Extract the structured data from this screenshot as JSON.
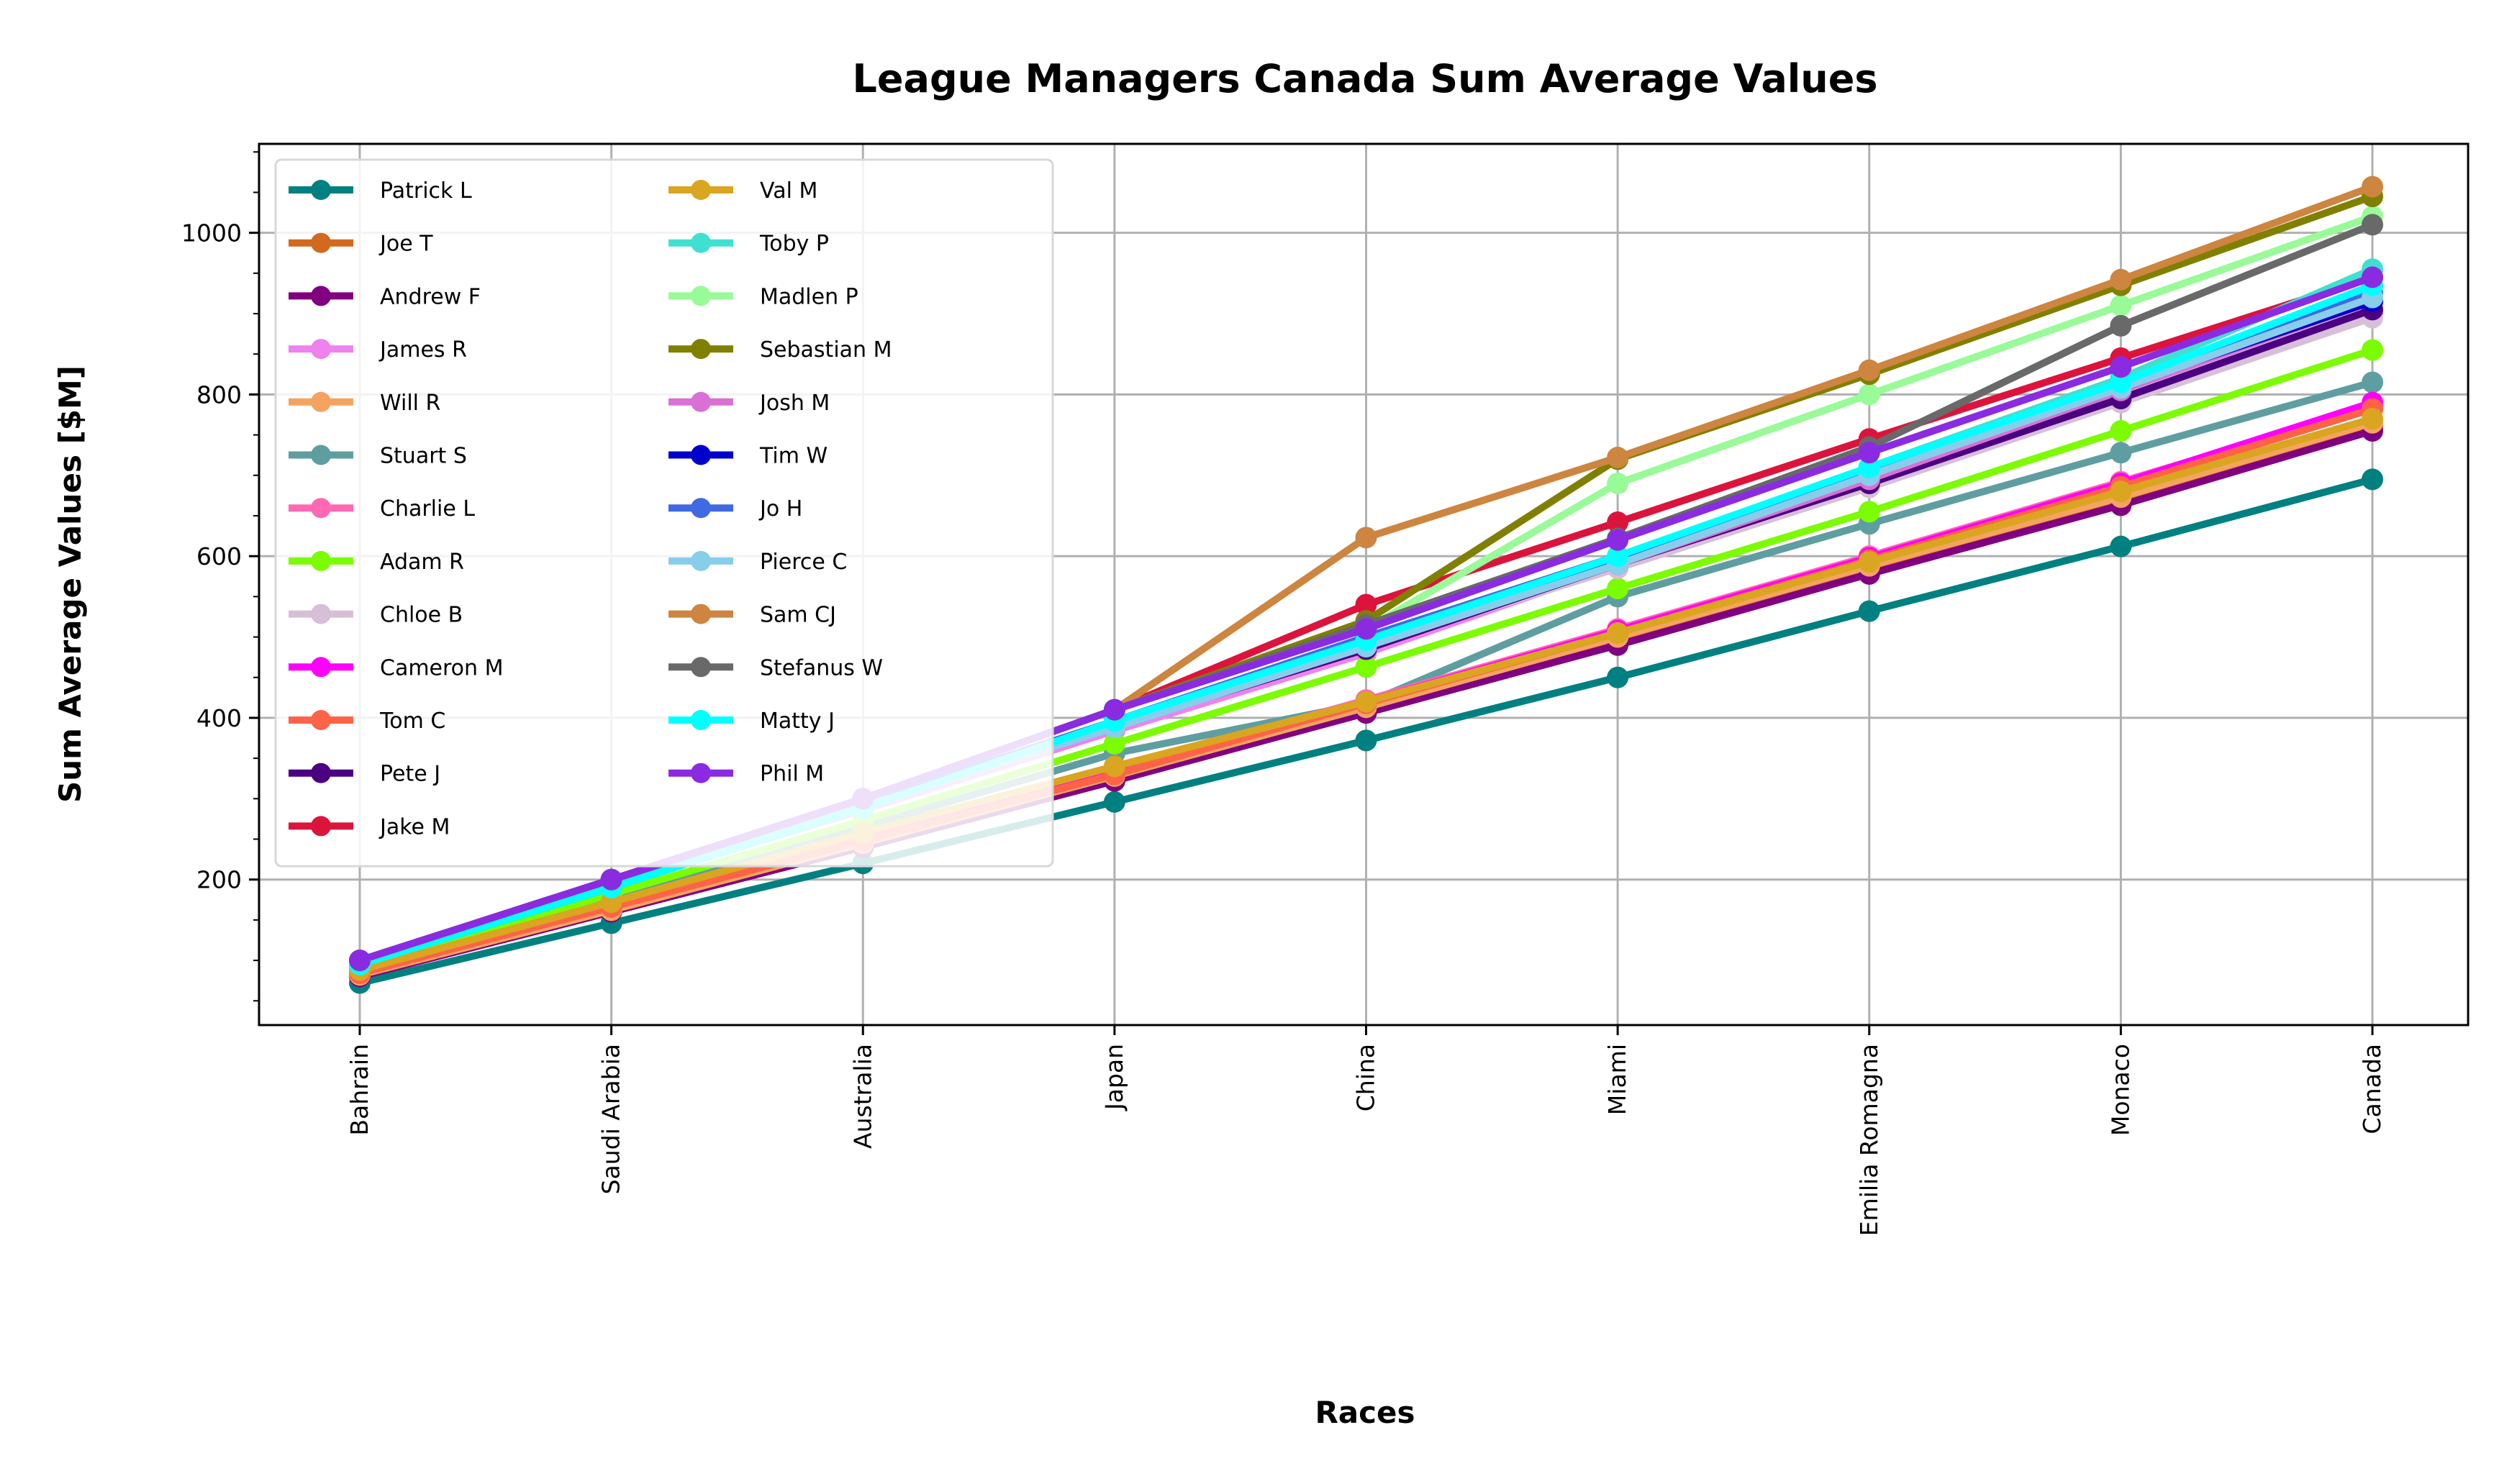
{
  "chart_data": {
    "type": "line",
    "title": "League Managers Canada Sum Average Values",
    "xlabel": "Races",
    "ylabel": "Sum Average Values [$M]",
    "ylim": [
      20,
      1110
    ],
    "yticks": [
      200,
      400,
      600,
      800,
      1000
    ],
    "grid": true,
    "legend_placement": "top-left",
    "categories": [
      "Bahrain",
      "Saudi Arabia",
      "Australia",
      "Japan",
      "China",
      "Miami",
      "Emilia Romagna",
      "Monaco",
      "Canada"
    ],
    "series": [
      {
        "name": "Patrick L",
        "color": "#008080",
        "values": [
          72,
          146,
          220,
          296,
          372,
          450,
          532,
          612,
          695
        ]
      },
      {
        "name": "Joe T",
        "color": "#D2691E",
        "values": [
          80,
          162,
          243,
          326,
          410,
          497,
          585,
          668,
          760
        ]
      },
      {
        "name": "Andrew F",
        "color": "#800080",
        "values": [
          80,
          160,
          240,
          322,
          406,
          490,
          578,
          663,
          755
        ]
      },
      {
        "name": "James R",
        "color": "#EE82EE",
        "values": [
          95,
          192,
          286,
          384,
          480,
          588,
          688,
          795,
          900
        ]
      },
      {
        "name": "Will R",
        "color": "#F4A460",
        "values": [
          82,
          162,
          245,
          328,
          413,
          500,
          588,
          673,
          765
        ]
      },
      {
        "name": "Stuart S",
        "color": "#5F9EA0",
        "values": [
          88,
          178,
          265,
          356,
          418,
          550,
          640,
          728,
          815
        ]
      },
      {
        "name": "Charlie L",
        "color": "#FF69B4",
        "values": [
          85,
          170,
          252,
          335,
          422,
          510,
          600,
          692,
          785
        ]
      },
      {
        "name": "Adam R",
        "color": "#7CFC00",
        "values": [
          90,
          182,
          273,
          368,
          463,
          560,
          655,
          755,
          855
        ]
      },
      {
        "name": "Chloe B",
        "color": "#D8BFD8",
        "values": [
          98,
          196,
          295,
          392,
          488,
          585,
          685,
          790,
          895
        ]
      },
      {
        "name": "Cameron M",
        "color": "#FF00FF",
        "values": [
          86,
          168,
          250,
          333,
          420,
          508,
          598,
          690,
          790
        ]
      },
      {
        "name": "Tom C",
        "color": "#FF6347",
        "values": [
          84,
          166,
          248,
          330,
          418,
          505,
          595,
          686,
          782
        ]
      },
      {
        "name": "Pete J",
        "color": "#4B0082",
        "values": [
          95,
          190,
          290,
          390,
          485,
          590,
          690,
          795,
          905
        ]
      },
      {
        "name": "Jake M",
        "color": "#DC143C",
        "values": [
          98,
          198,
          300,
          410,
          540,
          642,
          745,
          845,
          945
        ]
      },
      {
        "name": "Val M",
        "color": "#DAA520",
        "values": [
          88,
          172,
          258,
          340,
          420,
          505,
          593,
          680,
          770
        ]
      },
      {
        "name": "Toby P",
        "color": "#40E0D0",
        "values": [
          96,
          192,
          290,
          390,
          500,
          600,
          710,
          820,
          955
        ]
      },
      {
        "name": "Madlen P",
        "color": "#98FB98",
        "values": [
          100,
          200,
          300,
          410,
          510,
          690,
          800,
          910,
          1020
        ]
      },
      {
        "name": "Sebastian M",
        "color": "#808000",
        "values": [
          100,
          200,
          300,
          410,
          520,
          720,
          825,
          935,
          1045
        ]
      },
      {
        "name": "Josh M",
        "color": "#DA70D6",
        "values": [
          96,
          194,
          292,
          390,
          490,
          590,
          695,
          805,
          915
        ]
      },
      {
        "name": "Tim W",
        "color": "#0000CD",
        "values": [
          96,
          194,
          293,
          394,
          498,
          598,
          705,
          810,
          915
        ]
      },
      {
        "name": "Jo H",
        "color": "#4169E1",
        "values": [
          96,
          194,
          295,
          396,
          500,
          600,
          708,
          815,
          925
        ]
      },
      {
        "name": "Pierce C",
        "color": "#87CEEB",
        "values": [
          95,
          190,
          290,
          388,
          488,
          590,
          700,
          808,
          920
        ]
      },
      {
        "name": "Sam CJ",
        "color": "#CD853F",
        "values": [
          100,
          200,
          300,
          410,
          623,
          722,
          830,
          942,
          1057
        ]
      },
      {
        "name": "Stefanus W",
        "color": "#696969",
        "values": [
          100,
          200,
          300,
          410,
          515,
          622,
          735,
          885,
          1010
        ]
      },
      {
        "name": "Matty J",
        "color": "#00FFFF",
        "values": [
          95,
          190,
          288,
          396,
          496,
          600,
          710,
          815,
          935
        ]
      },
      {
        "name": "Phil M",
        "color": "#8A2BE2",
        "values": [
          100,
          200,
          300,
          410,
          510,
          620,
          728,
          834,
          945
        ]
      }
    ]
  }
}
